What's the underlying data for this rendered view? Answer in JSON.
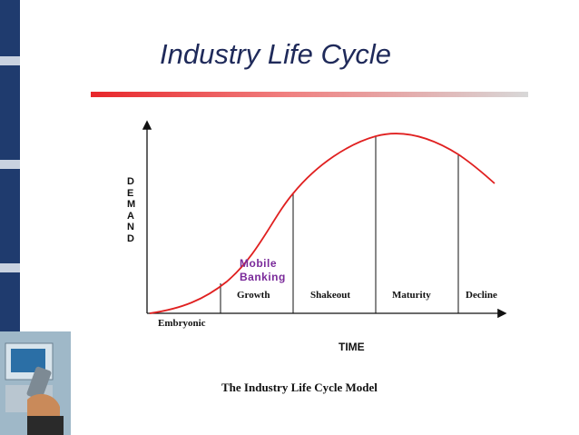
{
  "slide": {
    "title": "Industry Life Cycle"
  },
  "diagram": {
    "y_axis_label": "DEMAND",
    "x_axis_label": "TIME",
    "stages": [
      "Embryonic",
      "Growth",
      "Shakeout",
      "Maturity",
      "Decline"
    ],
    "annotation": "Mobile Banking",
    "caption": "The Industry Life Cycle Model"
  }
}
